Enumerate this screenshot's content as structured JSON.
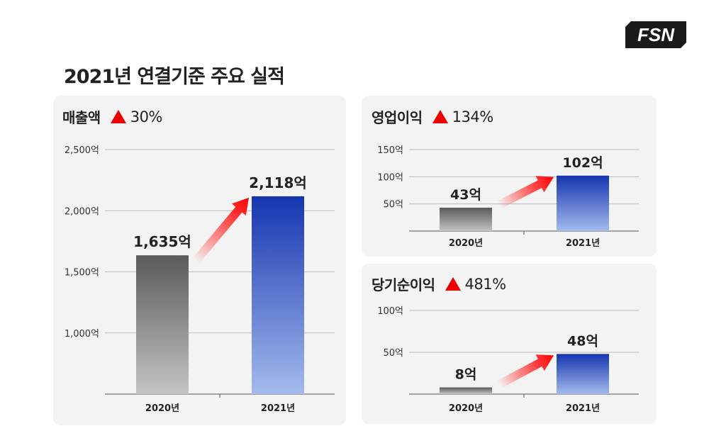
{
  "title": "2021년 연결기준 주요 실적",
  "logo_text": "FSN",
  "colors": {
    "panel_bg": "#f3f3f3",
    "bar_2020_top": "#5a5a5a",
    "bar_2020_bottom": "#c4c4c4",
    "bar_2021_top": "#1535b0",
    "bar_2021_bottom": "#a3bbec",
    "up": "#ee0000"
  },
  "panels": [
    {
      "name": "매출액",
      "change_icon": "up-triangle-icon",
      "change": "30%"
    },
    {
      "name": "영업이익",
      "change_icon": "up-triangle-icon",
      "change": "134%"
    },
    {
      "name": "당기순이익",
      "change_icon": "up-triangle-icon",
      "change": "481%"
    }
  ],
  "chart_data": [
    {
      "type": "bar",
      "title": "매출액",
      "categories": [
        "2020년",
        "2021년"
      ],
      "values": [
        1635,
        2118
      ],
      "value_labels": [
        "1,635억",
        "2,118억"
      ],
      "yticks": [
        1000,
        1500,
        2000,
        2500
      ],
      "ytick_labels": [
        "1,000억",
        "1,500억",
        "2,000억",
        "2,500억"
      ],
      "ylim": [
        500,
        2500
      ],
      "grid": true
    },
    {
      "type": "bar",
      "title": "영업이익",
      "categories": [
        "2020년",
        "2021년"
      ],
      "values": [
        43,
        102
      ],
      "value_labels": [
        "43억",
        "102억"
      ],
      "yticks": [
        50,
        100,
        150
      ],
      "ytick_labels": [
        "50억",
        "100억",
        "150억"
      ],
      "ylim": [
        0,
        150
      ],
      "grid": true
    },
    {
      "type": "bar",
      "title": "당기순이익",
      "categories": [
        "2020년",
        "2021년"
      ],
      "values": [
        8,
        48
      ],
      "value_labels": [
        "8억",
        "48억"
      ],
      "yticks": [
        50,
        100
      ],
      "ytick_labels": [
        "50억",
        "100억"
      ],
      "ylim": [
        0,
        100
      ],
      "grid": true
    }
  ]
}
